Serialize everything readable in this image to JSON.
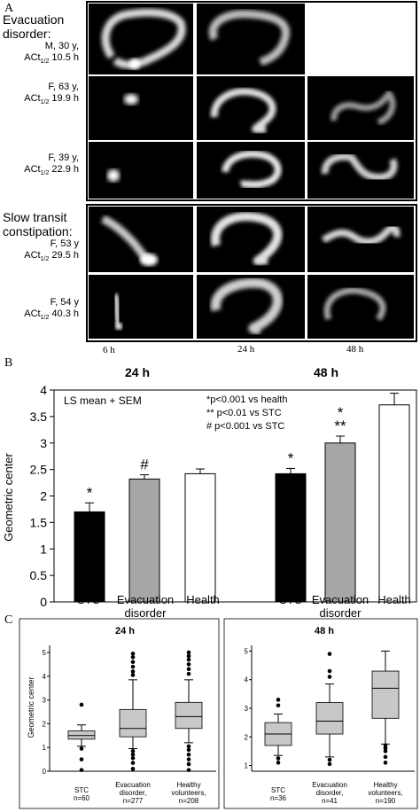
{
  "panel_a": {
    "letter": "A",
    "groups": [
      {
        "lines": [
          "Evacuation",
          "disorder:"
        ],
        "sub": [
          "M, 30 y,",
          "ACt",
          "1/2",
          " 10.5 h"
        ]
      },
      {
        "sub": [
          "F, 63 y,",
          "ACt",
          "1/2",
          " 19.9 h"
        ]
      },
      {
        "sub": [
          "F, 39 y,",
          "ACt",
          "1/2",
          " 22.9 h"
        ]
      },
      {
        "lines": [
          "Slow transit",
          "constipation:"
        ],
        "sub": [
          "F, 53 y",
          "ACt",
          "1/2",
          " 29.5 h"
        ]
      },
      {
        "sub": [
          "F, 54 y",
          "ACt",
          "1/2",
          " 40.3 h"
        ]
      }
    ],
    "timepoints": [
      "6 h",
      "24 h",
      "48 h"
    ]
  },
  "panel_b": {
    "letter": "B",
    "headers": [
      "24 h",
      "48 h"
    ],
    "legend": "LS mean + SEM",
    "notes": [
      "*p<0.001 vs health",
      "** p<0.01 vs STC",
      "# p<0.001 vs STC"
    ],
    "ylabel": "Geometric center",
    "xlabels": [
      [
        "STC"
      ],
      [
        "Evacuation",
        "disorder"
      ],
      [
        "Health"
      ],
      [
        "STC"
      ],
      [
        "Evacuation",
        "disorder"
      ],
      [
        "Health"
      ]
    ]
  },
  "panel_c": {
    "letter": "C",
    "left_title": "24 h",
    "right_title": "48 h",
    "ylabel": "Geometric center",
    "left_groups": [
      [
        "STC",
        "n=60"
      ],
      [
        "Evacuation",
        "disorder,",
        "n=277"
      ],
      [
        "Healthy",
        "volunteers,",
        "n=208"
      ]
    ],
    "right_groups": [
      [
        "STC",
        "n=36"
      ],
      [
        "Evacuation",
        "disorder,",
        "n=41"
      ],
      [
        "Healthy",
        "volunteers,",
        "n=190"
      ]
    ]
  },
  "chart_data": [
    {
      "type": "bar",
      "title": "",
      "ylabel": "Geometric center",
      "ylim": [
        0,
        4
      ],
      "yticks": [
        "0",
        "0.5",
        "1",
        "1.5",
        "2",
        "2.5",
        "3",
        "3.5",
        "4"
      ],
      "groups": [
        "24 h",
        "48 h"
      ],
      "categories": [
        "STC",
        "Evacuation disorder",
        "Health"
      ],
      "series": [
        {
          "group": "24 h",
          "values": [
            1.7,
            2.32,
            2.42
          ],
          "sem": [
            0.17,
            0.08,
            0.09
          ],
          "annotations": [
            "*",
            "#",
            ""
          ]
        },
        {
          "group": "48 h",
          "values": [
            2.42,
            3.0,
            3.72
          ],
          "sem": [
            0.1,
            0.13,
            0.22
          ],
          "annotations": [
            "*",
            "*\n**",
            ""
          ]
        }
      ],
      "colors": [
        "#000000",
        "#a6a6a6",
        "#ffffff"
      ]
    },
    {
      "type": "box",
      "title": "24 h",
      "ylabel": "Geometric center",
      "ylim": [
        0,
        5.3
      ],
      "yticks": [
        "0",
        "1",
        "2",
        "3",
        "4",
        "5"
      ],
      "categories": [
        "STC",
        "Evacuation disorder",
        "Healthy volunteers"
      ],
      "n": [
        60,
        277,
        208
      ],
      "boxes": [
        {
          "q1": 1.35,
          "median": 1.5,
          "q3": 1.7,
          "whisker_low": 1.05,
          "whisker_high": 1.95,
          "outliers": [
            2.8,
            0.95,
            0.5,
            0.05
          ]
        },
        {
          "q1": 1.45,
          "median": 1.8,
          "q3": 2.6,
          "whisker_low": 0.95,
          "whisker_high": 3.85,
          "outliers": [
            4.95,
            4.8,
            4.6,
            4.4,
            4.2,
            4.05,
            0.85,
            0.7,
            0.55,
            0.35,
            0.1
          ]
        },
        {
          "q1": 1.8,
          "median": 2.3,
          "q3": 2.9,
          "whisker_low": 1.2,
          "whisker_high": 3.85,
          "outliers": [
            5.0,
            4.85,
            4.7,
            4.5,
            4.3,
            4.1,
            1.05,
            0.9,
            0.7,
            0.5,
            0.3,
            0.05
          ]
        }
      ],
      "fill": "#c8c8c8"
    },
    {
      "type": "box",
      "title": "48 h",
      "ylabel": "",
      "ylim": [
        0.8,
        5.2
      ],
      "yticks": [
        "1",
        "2",
        "3",
        "4",
        "5"
      ],
      "categories": [
        "STC",
        "Evacuation disorder",
        "Healthy volunteers"
      ],
      "n": [
        36,
        41,
        190
      ],
      "boxes": [
        {
          "q1": 1.7,
          "median": 2.1,
          "q3": 2.5,
          "whisker_low": 1.35,
          "whisker_high": 2.8,
          "outliers": [
            3.3,
            3.1,
            1.25,
            1.1
          ]
        },
        {
          "q1": 2.1,
          "median": 2.55,
          "q3": 3.2,
          "whisker_low": 1.3,
          "whisker_high": 3.85,
          "outliers": [
            4.9,
            4.3,
            4.1,
            1.2,
            1.05
          ]
        },
        {
          "q1": 2.65,
          "median": 3.7,
          "q3": 4.3,
          "whisker_low": 1.75,
          "whisker_high": 5.0,
          "outliers": [
            1.7,
            1.6,
            1.5,
            1.3,
            1.1
          ]
        }
      ],
      "fill": "#c8c8c8"
    }
  ]
}
